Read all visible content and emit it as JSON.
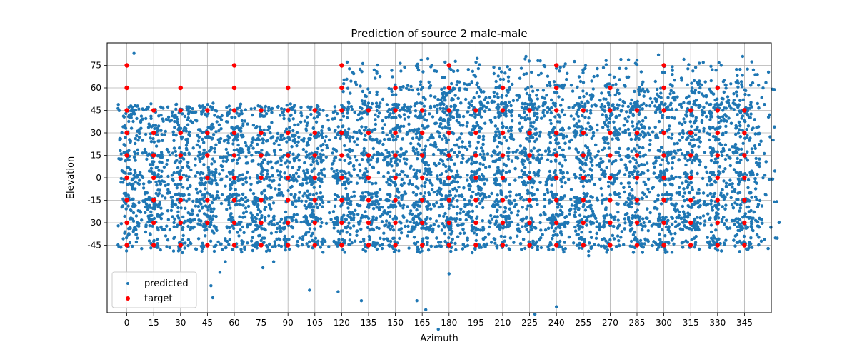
{
  "chart_data": {
    "type": "scatter",
    "title": "Prediction of source 2 male-male",
    "xlabel": "Azimuth",
    "ylabel": "Elevation",
    "xlim": [
      -11,
      360
    ],
    "ylim": [
      -90,
      90
    ],
    "xticks": [
      0,
      15,
      30,
      45,
      60,
      75,
      90,
      105,
      120,
      135,
      150,
      165,
      180,
      195,
      210,
      225,
      240,
      255,
      270,
      285,
      300,
      315,
      330,
      345
    ],
    "yticks": [
      -45,
      -30,
      -15,
      0,
      15,
      30,
      45,
      60,
      75
    ],
    "grid": true,
    "legend": {
      "placement": "lower-left",
      "entries": [
        "predicted",
        "target"
      ]
    },
    "colors": {
      "predicted": "#1f77b4",
      "target": "#ff0000"
    },
    "series": [
      {
        "name": "target",
        "points": [
          [
            0,
            75
          ],
          [
            0,
            60
          ],
          [
            0,
            45
          ],
          [
            0,
            30
          ],
          [
            0,
            15
          ],
          [
            0,
            0
          ],
          [
            0,
            -15
          ],
          [
            0,
            -30
          ],
          [
            0,
            -45
          ],
          [
            15,
            45
          ],
          [
            15,
            30
          ],
          [
            15,
            15
          ],
          [
            15,
            0
          ],
          [
            15,
            -15
          ],
          [
            15,
            -30
          ],
          [
            15,
            -45
          ],
          [
            30,
            60
          ],
          [
            30,
            45
          ],
          [
            30,
            30
          ],
          [
            30,
            15
          ],
          [
            30,
            0
          ],
          [
            30,
            -15
          ],
          [
            30,
            -30
          ],
          [
            30,
            -45
          ],
          [
            45,
            45
          ],
          [
            45,
            30
          ],
          [
            45,
            15
          ],
          [
            45,
            0
          ],
          [
            45,
            -15
          ],
          [
            45,
            -30
          ],
          [
            45,
            -45
          ],
          [
            60,
            75
          ],
          [
            60,
            60
          ],
          [
            60,
            45
          ],
          [
            60,
            30
          ],
          [
            60,
            15
          ],
          [
            60,
            0
          ],
          [
            60,
            -15
          ],
          [
            60,
            -30
          ],
          [
            60,
            -45
          ],
          [
            75,
            45
          ],
          [
            75,
            30
          ],
          [
            75,
            15
          ],
          [
            75,
            0
          ],
          [
            75,
            -15
          ],
          [
            75,
            -30
          ],
          [
            75,
            -45
          ],
          [
            90,
            60
          ],
          [
            90,
            45
          ],
          [
            90,
            30
          ],
          [
            90,
            15
          ],
          [
            90,
            0
          ],
          [
            90,
            -15
          ],
          [
            90,
            -30
          ],
          [
            90,
            -45
          ],
          [
            105,
            45
          ],
          [
            105,
            30
          ],
          [
            105,
            15
          ],
          [
            105,
            0
          ],
          [
            105,
            -15
          ],
          [
            105,
            -30
          ],
          [
            105,
            -45
          ],
          [
            120,
            75
          ],
          [
            120,
            60
          ],
          [
            120,
            45
          ],
          [
            120,
            30
          ],
          [
            120,
            15
          ],
          [
            120,
            0
          ],
          [
            120,
            -15
          ],
          [
            120,
            -30
          ],
          [
            120,
            -45
          ],
          [
            135,
            45
          ],
          [
            135,
            30
          ],
          [
            135,
            15
          ],
          [
            135,
            0
          ],
          [
            135,
            -15
          ],
          [
            135,
            -30
          ],
          [
            135,
            -45
          ],
          [
            150,
            60
          ],
          [
            150,
            45
          ],
          [
            150,
            30
          ],
          [
            150,
            15
          ],
          [
            150,
            0
          ],
          [
            150,
            -15
          ],
          [
            150,
            -30
          ],
          [
            150,
            -45
          ],
          [
            165,
            45
          ],
          [
            165,
            30
          ],
          [
            165,
            15
          ],
          [
            165,
            0
          ],
          [
            165,
            -15
          ],
          [
            165,
            -30
          ],
          [
            165,
            -45
          ],
          [
            180,
            75
          ],
          [
            180,
            60
          ],
          [
            180,
            45
          ],
          [
            180,
            30
          ],
          [
            180,
            15
          ],
          [
            180,
            0
          ],
          [
            180,
            -15
          ],
          [
            180,
            -30
          ],
          [
            180,
            -45
          ],
          [
            195,
            45
          ],
          [
            195,
            30
          ],
          [
            195,
            15
          ],
          [
            195,
            0
          ],
          [
            195,
            -15
          ],
          [
            195,
            -30
          ],
          [
            195,
            -45
          ],
          [
            210,
            60
          ],
          [
            210,
            45
          ],
          [
            210,
            30
          ],
          [
            210,
            15
          ],
          [
            210,
            0
          ],
          [
            210,
            -15
          ],
          [
            210,
            -30
          ],
          [
            210,
            -45
          ],
          [
            225,
            45
          ],
          [
            225,
            30
          ],
          [
            225,
            15
          ],
          [
            225,
            0
          ],
          [
            225,
            -15
          ],
          [
            225,
            -30
          ],
          [
            225,
            -45
          ],
          [
            240,
            75
          ],
          [
            240,
            60
          ],
          [
            240,
            45
          ],
          [
            240,
            30
          ],
          [
            240,
            15
          ],
          [
            240,
            0
          ],
          [
            240,
            -15
          ],
          [
            240,
            -30
          ],
          [
            240,
            -45
          ],
          [
            255,
            45
          ],
          [
            255,
            30
          ],
          [
            255,
            15
          ],
          [
            255,
            0
          ],
          [
            255,
            -15
          ],
          [
            255,
            -30
          ],
          [
            255,
            -45
          ],
          [
            270,
            60
          ],
          [
            270,
            45
          ],
          [
            270,
            30
          ],
          [
            270,
            15
          ],
          [
            270,
            0
          ],
          [
            270,
            -15
          ],
          [
            270,
            -30
          ],
          [
            270,
            -45
          ],
          [
            285,
            45
          ],
          [
            285,
            30
          ],
          [
            285,
            15
          ],
          [
            285,
            0
          ],
          [
            285,
            -15
          ],
          [
            285,
            -30
          ],
          [
            285,
            -45
          ],
          [
            300,
            75
          ],
          [
            300,
            60
          ],
          [
            300,
            45
          ],
          [
            300,
            30
          ],
          [
            300,
            15
          ],
          [
            300,
            0
          ],
          [
            300,
            -15
          ],
          [
            300,
            -30
          ],
          [
            300,
            -45
          ],
          [
            315,
            45
          ],
          [
            315,
            30
          ],
          [
            315,
            15
          ],
          [
            315,
            0
          ],
          [
            315,
            -15
          ],
          [
            315,
            -30
          ],
          [
            315,
            -45
          ],
          [
            330,
            60
          ],
          [
            330,
            45
          ],
          [
            330,
            30
          ],
          [
            330,
            15
          ],
          [
            330,
            0
          ],
          [
            330,
            -15
          ],
          [
            330,
            -30
          ],
          [
            330,
            -45
          ],
          [
            345,
            45
          ],
          [
            345,
            30
          ],
          [
            345,
            15
          ],
          [
            345,
            0
          ],
          [
            345,
            -15
          ],
          [
            345,
            -30
          ],
          [
            345,
            -45
          ]
        ]
      },
      {
        "name": "predicted",
        "description_of_distribution": "dense cloud",
        "regions": [
          {
            "az": [
              -2,
              170
            ],
            "el": [
              -48,
              48
            ],
            "count": 2600
          },
          {
            "az": [
              170,
              355
            ],
            "el": [
              -48,
              55
            ],
            "count": 3600
          },
          {
            "az": [
              120,
              355
            ],
            "el": [
              45,
              75
            ],
            "count": 500
          }
        ],
        "outliers": [
          [
            4,
            83
          ],
          [
            3,
            -5
          ],
          [
            47,
            -72
          ],
          [
            48,
            -80
          ],
          [
            52,
            -63
          ],
          [
            55,
            -56
          ],
          [
            76,
            -60
          ],
          [
            82,
            -56
          ],
          [
            102,
            -75
          ],
          [
            118,
            -76
          ],
          [
            131,
            -82
          ],
          [
            162,
            -82
          ],
          [
            167,
            -88
          ],
          [
            174,
            -101
          ],
          [
            180,
            -64
          ],
          [
            228,
            -91
          ],
          [
            240,
            -86
          ],
          [
            258,
            -52
          ],
          [
            231,
            78
          ],
          [
            240,
            73
          ],
          [
            245,
            76
          ],
          [
            223,
            81
          ],
          [
            263,
            68
          ],
          [
            276,
            79
          ],
          [
            297,
            82
          ],
          [
            322,
            77
          ],
          [
            332,
            75
          ],
          [
            344,
            81
          ],
          [
            350,
            72
          ]
        ]
      }
    ]
  }
}
